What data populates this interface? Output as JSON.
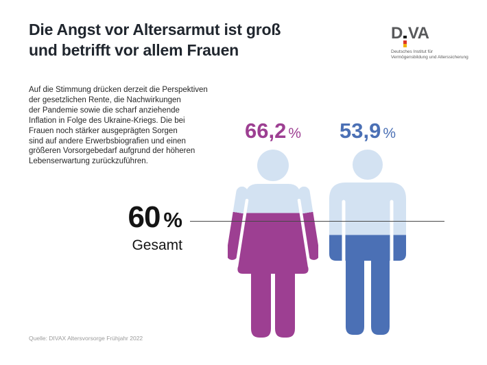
{
  "header": {
    "title_line1": "Die Angst vor Altersarmut ist groß",
    "title_line2": "und betrifft vor allem Frauen"
  },
  "logo": {
    "d": "D",
    "va": "VA",
    "caption_line1": "Deutsches Institut für",
    "caption_line2": "Vermögensbildung und Alterssicherung",
    "flag_colors": [
      "#1a1a1a",
      "#dd3526",
      "#f1b30e"
    ]
  },
  "intro": "Auf die Stimmung drücken derzeit die Perspektiven\nder gesetzlichen Rente, die Nachwirkungen\nder Pandemie sowie die scharf anziehende\nInflation in Folge des Ukraine-Kriegs. Die bei\nFrauen noch stärker ausgeprägten Sorgen\nsind auf andere Erwerbsbiografien und einen\ngrößeren Vorsorgebedarf aufgrund der höheren\nLebenserwartung zurückzuführen.",
  "chart_data": {
    "type": "pictogram",
    "title": "Die Angst vor Altersarmut ist groß und betrifft vor allem Frauen",
    "categories": [
      "Frauen",
      "Männer"
    ],
    "values": [
      66.2,
      53.9
    ],
    "value_labels": [
      "66,2",
      "53,9"
    ],
    "unit": "%",
    "average": {
      "value": 60,
      "display": "60",
      "label": "Gesamt"
    },
    "ylim": [
      0,
      100
    ],
    "legend_position": "none",
    "grid": false,
    "colors": {
      "frauen": "#9d3f92",
      "maenner": "#4b70b5",
      "unfilled": "#d3e2f2",
      "baseline": "#474747"
    },
    "source": "Quelle: DIVAX Altersvorsorge Frühjahr 2022"
  }
}
